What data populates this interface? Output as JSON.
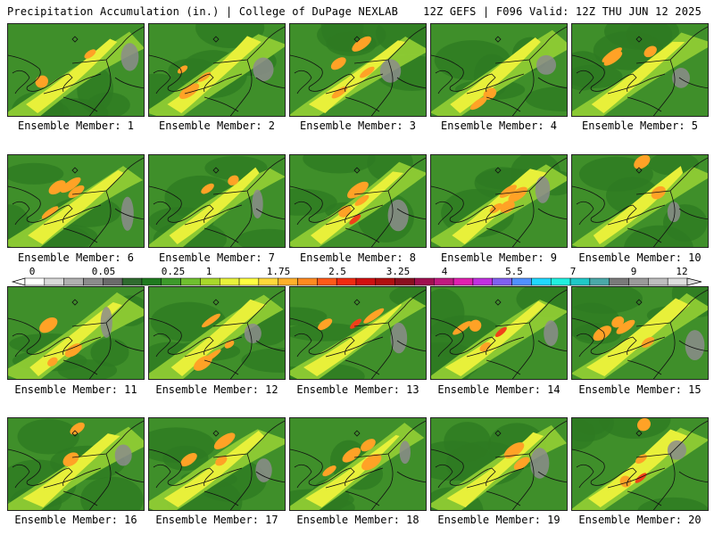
{
  "header": {
    "title": "Precipitation Accumulation (in.) | College of DuPage NEXLAB",
    "run_info": "12Z GEFS | F096 Valid: 12Z THU JUN 12 2025"
  },
  "panels": [
    {
      "label": "Ensemble Member: 1"
    },
    {
      "label": "Ensemble Member: 2"
    },
    {
      "label": "Ensemble Member: 3"
    },
    {
      "label": "Ensemble Member: 4"
    },
    {
      "label": "Ensemble Member: 5"
    },
    {
      "label": "Ensemble Member: 6"
    },
    {
      "label": "Ensemble Member: 7"
    },
    {
      "label": "Ensemble Member: 8"
    },
    {
      "label": "Ensemble Member: 9"
    },
    {
      "label": "Ensemble Member: 10"
    },
    {
      "label": "Ensemble Member: 11"
    },
    {
      "label": "Ensemble Member: 12"
    },
    {
      "label": "Ensemble Member: 13"
    },
    {
      "label": "Ensemble Member: 14"
    },
    {
      "label": "Ensemble Member: 15"
    },
    {
      "label": "Ensemble Member: 16"
    },
    {
      "label": "Ensemble Member: 17"
    },
    {
      "label": "Ensemble Member: 18"
    },
    {
      "label": "Ensemble Member: 19"
    },
    {
      "label": "Ensemble Member: 20"
    }
  ],
  "colorbar": {
    "tick_labels": [
      "0",
      "0.05",
      "0.25",
      "1",
      "1.75",
      "2.5",
      "3.25",
      "4",
      "5.5",
      "7",
      "9",
      "12"
    ],
    "colors": [
      "#ffffff",
      "#d9d9d9",
      "#b0b0b0",
      "#8c8c8c",
      "#6b6b6b",
      "#2f6b2f",
      "#1f7a1f",
      "#3d9a2b",
      "#6fbf2f",
      "#a8d82a",
      "#e8f23a",
      "#ffff40",
      "#ffd83a",
      "#ffb02a",
      "#ff8a20",
      "#ff5a18",
      "#f02a10",
      "#d01010",
      "#b01010",
      "#8a1020",
      "#a01050",
      "#c01a80",
      "#e020b0",
      "#c030e0",
      "#8060f0",
      "#5090ff",
      "#20d8ff",
      "#20f0e0",
      "#20c8c8",
      "#4aa8a8",
      "#7a7a7a",
      "#9a9a9a",
      "#bdbdbd",
      "#dedede"
    ]
  }
}
